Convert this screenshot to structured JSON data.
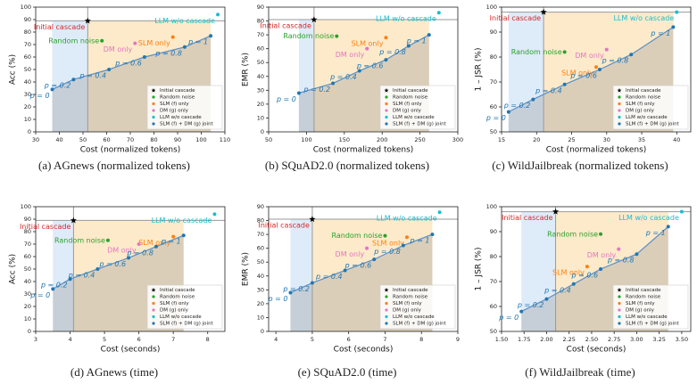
{
  "chart_data": [
    {
      "type": "scatter",
      "caption": "(a) AGnews (normalized tokens)",
      "xlabel": "Cost (normalized tokens)",
      "ylabel": "Acc (%)",
      "xlim": [
        30,
        110
      ],
      "xticks": [
        30,
        40,
        50,
        60,
        70,
        80,
        90,
        100,
        110
      ],
      "ylim": [
        0,
        100
      ],
      "yticks": [
        0,
        10,
        20,
        30,
        40,
        50,
        60,
        70,
        80,
        90,
        100
      ],
      "series": [
        {
          "name": "Initial cascade",
          "label": "Initial cascade",
          "color": "#000000",
          "label_color": "#d62728",
          "marker": "star",
          "x": [
            52
          ],
          "values": [
            89
          ]
        },
        {
          "name": "Random noise",
          "label": "Random noise",
          "color": "#2ca02c",
          "x": [
            58
          ],
          "values": [
            73
          ]
        },
        {
          "name": "SLM (f) only",
          "label": "SLM only",
          "color": "#ff7f0e",
          "x": [
            88
          ],
          "values": [
            76
          ]
        },
        {
          "name": "DM (g) only",
          "label": "DM only",
          "color": "#e377c2",
          "x": [
            72
          ],
          "values": [
            71
          ]
        },
        {
          "name": "LLM w/o cascade",
          "label": "LLM w/o cascade",
          "color": "#17becf",
          "x": [
            107
          ],
          "values": [
            94
          ]
        },
        {
          "name": "SLM (f) + DM (g) joint",
          "color": "#1f77b4",
          "line": true,
          "x": [
            37,
            46,
            61,
            76,
            93,
            104
          ],
          "values": [
            34,
            42,
            50,
            60,
            68,
            77
          ],
          "point_labels": [
            "p = 0",
            "p = 0.2",
            "p = 0.4",
            "p = 0.6",
            "p = 0.8",
            "p = 1"
          ]
        }
      ]
    },
    {
      "type": "scatter",
      "caption": "(b) SQuAD2.0 (normalized tokens)",
      "xlabel": "Cost (normalized tokens)",
      "ylabel": "EMR (%)",
      "xlim": [
        50,
        300
      ],
      "xticks": [
        50,
        100,
        150,
        200,
        250,
        300
      ],
      "ylim": [
        0,
        90
      ],
      "yticks": [
        0,
        10,
        20,
        30,
        40,
        50,
        60,
        70,
        80,
        90
      ],
      "series": [
        {
          "name": "Initial cascade",
          "label": "Initial cascade",
          "color": "#000000",
          "label_color": "#d62728",
          "marker": "star",
          "x": [
            110
          ],
          "values": [
            81
          ]
        },
        {
          "name": "Random noise",
          "label": "Random noise",
          "color": "#2ca02c",
          "x": [
            140
          ],
          "values": [
            69
          ]
        },
        {
          "name": "SLM (f) only",
          "label": "SLM only",
          "color": "#ff7f0e",
          "x": [
            205
          ],
          "values": [
            68
          ]
        },
        {
          "name": "DM (g) only",
          "label": "DM only",
          "color": "#e377c2",
          "x": [
            180
          ],
          "values": [
            60
          ]
        },
        {
          "name": "LLM w/o cascade",
          "label": "LLM w/o cascade",
          "color": "#17becf",
          "x": [
            275
          ],
          "values": [
            86
          ]
        },
        {
          "name": "SLM (f) + DM (g) joint",
          "color": "#1f77b4",
          "line": true,
          "x": [
            90,
            135,
            170,
            205,
            235,
            262
          ],
          "values": [
            28,
            35,
            44,
            52,
            62,
            70
          ],
          "point_labels": [
            "p = 0",
            "p = 0.2",
            "p = 0.4",
            "p = 0.6",
            "p = 0.8",
            "p = 1"
          ]
        }
      ]
    },
    {
      "type": "scatter",
      "caption": "(c) WildJailbreak (normalized tokens)",
      "xlabel": "Cost (normalized tokens)",
      "ylabel": "1 – JSR (%)",
      "xlim": [
        15,
        42
      ],
      "xticks": [
        15,
        20,
        25,
        30,
        35,
        40
      ],
      "ylim": [
        50,
        100
      ],
      "yticks": [
        50,
        60,
        70,
        80,
        90,
        100
      ],
      "series": [
        {
          "name": "Initial cascade",
          "label": "Initial cascade",
          "color": "#000000",
          "label_color": "#d62728",
          "marker": "star",
          "x": [
            21
          ],
          "values": [
            98
          ]
        },
        {
          "name": "Random noise",
          "label": "Random noise",
          "color": "#2ca02c",
          "x": [
            24
          ],
          "values": [
            82
          ]
        },
        {
          "name": "SLM (f) only",
          "label": "SLM only",
          "color": "#ff7f0e",
          "x": [
            28.5
          ],
          "values": [
            76
          ]
        },
        {
          "name": "DM (g) only",
          "label": "DM only",
          "color": "#e377c2",
          "x": [
            30
          ],
          "values": [
            83
          ]
        },
        {
          "name": "LLM w/o cascade",
          "label": "LLM w/o cascade",
          "color": "#17becf",
          "x": [
            40
          ],
          "values": [
            98
          ]
        },
        {
          "name": "SLM (f) + DM (g) joint",
          "color": "#1f77b4",
          "line": true,
          "x": [
            16,
            19.5,
            24,
            29,
            33.5,
            39.5
          ],
          "values": [
            58,
            63,
            69,
            75,
            81,
            92
          ],
          "point_labels": [
            "p = 0",
            "p = 0.2",
            "p = 0.4",
            "p = 0.6",
            "p = 0.8",
            "p = 1"
          ]
        }
      ]
    },
    {
      "type": "scatter",
      "caption": "(d) AGnews (time)",
      "xlabel": "Cost (seconds)",
      "ylabel": "Acc (%)",
      "xlim": [
        3,
        8.5
      ],
      "xticks": [
        3,
        4,
        5,
        6,
        7,
        8
      ],
      "ylim": [
        0,
        100
      ],
      "yticks": [
        0,
        10,
        20,
        30,
        40,
        50,
        60,
        70,
        80,
        90,
        100
      ],
      "series": [
        {
          "name": "Initial cascade",
          "label": "Initial cascade",
          "color": "#000000",
          "label_color": "#d62728",
          "marker": "star",
          "x": [
            4.1
          ],
          "values": [
            89
          ]
        },
        {
          "name": "Random noise",
          "label": "Random noise",
          "color": "#2ca02c",
          "x": [
            5.1
          ],
          "values": [
            73
          ]
        },
        {
          "name": "SLM (f) only",
          "label": "SLM only",
          "color": "#ff7f0e",
          "x": [
            7.0
          ],
          "values": [
            76
          ]
        },
        {
          "name": "DM (g) only",
          "label": "DM only",
          "color": "#e377c2",
          "x": [
            6.0
          ],
          "values": [
            70
          ]
        },
        {
          "name": "LLM w/o cascade",
          "label": "LLM w/o cascade",
          "color": "#17becf",
          "x": [
            8.2
          ],
          "values": [
            94
          ]
        },
        {
          "name": "SLM (f) + DM (g) joint",
          "color": "#1f77b4",
          "line": true,
          "x": [
            3.5,
            4.0,
            4.8,
            5.7,
            6.5,
            7.3
          ],
          "values": [
            34,
            42,
            50,
            59,
            68,
            77
          ],
          "point_labels": [
            "p = 0",
            "p = 0.2",
            "p = 0.4",
            "p = 0.6",
            "p = 0.8",
            "p = 1"
          ]
        }
      ]
    },
    {
      "type": "scatter",
      "caption": "(e) SQuAD2.0 (time)",
      "xlabel": "Cost (seconds)",
      "ylabel": "EMR (%)",
      "xlim": [
        3.8,
        9
      ],
      "xticks": [
        4,
        5,
        6,
        7,
        8,
        9
      ],
      "ylim": [
        0,
        90
      ],
      "yticks": [
        0,
        10,
        20,
        30,
        40,
        50,
        60,
        70,
        80,
        90
      ],
      "series": [
        {
          "name": "Initial cascade",
          "label": "Initial cascade",
          "color": "#000000",
          "label_color": "#d62728",
          "marker": "star",
          "x": [
            5.0
          ],
          "values": [
            81
          ]
        },
        {
          "name": "Random noise",
          "label": "Random noise",
          "color": "#2ca02c",
          "x": [
            7.0
          ],
          "values": [
            69
          ]
        },
        {
          "name": "SLM (f) only",
          "label": "SLM only",
          "color": "#ff7f0e",
          "x": [
            7.6
          ],
          "values": [
            68
          ]
        },
        {
          "name": "DM (g) only",
          "label": "DM only",
          "color": "#e377c2",
          "x": [
            6.5
          ],
          "values": [
            60
          ]
        },
        {
          "name": "LLM w/o cascade",
          "label": "LLM w/o cascade",
          "color": "#17becf",
          "x": [
            8.5
          ],
          "values": [
            86
          ]
        },
        {
          "name": "SLM (f) + DM (g) joint",
          "color": "#1f77b4",
          "line": true,
          "x": [
            4.4,
            5.0,
            5.9,
            6.7,
            7.5,
            8.3
          ],
          "values": [
            28,
            35,
            44,
            52,
            62,
            70
          ],
          "point_labels": [
            "p = 0",
            "p = 0.2",
            "p = 0.4",
            "p = 0.6",
            "p = 0.8",
            "p = 1"
          ]
        }
      ]
    },
    {
      "type": "scatter",
      "caption": "(f) WildJailbreak (time)",
      "xlabel": "Cost (seconds)",
      "ylabel": "1 – JSR (%)",
      "xlim": [
        1.5,
        3.6
      ],
      "xticks": [
        {
          "value": 1.5,
          "label": "1.50"
        },
        1.75,
        {
          "value": 2,
          "label": "2.00"
        },
        2.25,
        {
          "value": 2.5,
          "label": "2.50"
        },
        2.75,
        {
          "value": 3,
          "label": "3.00"
        },
        3.25,
        {
          "value": 3.5,
          "label": "3.50"
        }
      ],
      "ylim": [
        50,
        100
      ],
      "yticks": [
        50,
        60,
        70,
        80,
        90,
        100
      ],
      "series": [
        {
          "name": "Initial cascade",
          "label": "Initial cascade",
          "color": "#000000",
          "label_color": "#d62728",
          "marker": "star",
          "x": [
            2.1
          ],
          "values": [
            98
          ]
        },
        {
          "name": "Random noise",
          "label": "Random noise",
          "color": "#2ca02c",
          "x": [
            2.6
          ],
          "values": [
            89
          ]
        },
        {
          "name": "SLM (f) only",
          "label": "SLM only",
          "color": "#ff7f0e",
          "x": [
            2.45
          ],
          "values": [
            76
          ]
        },
        {
          "name": "DM (g) only",
          "label": "DM only",
          "color": "#e377c2",
          "x": [
            2.8
          ],
          "values": [
            83
          ]
        },
        {
          "name": "LLM w/o cascade",
          "label": "LLM w/o cascade",
          "color": "#17becf",
          "x": [
            3.5
          ],
          "values": [
            98
          ]
        },
        {
          "name": "SLM (f) + DM (g) joint",
          "color": "#1f77b4",
          "line": true,
          "x": [
            1.72,
            2.0,
            2.3,
            2.6,
            3.0,
            3.35
          ],
          "values": [
            58,
            63,
            69,
            75,
            81,
            92
          ],
          "point_labels": [
            "p = 0",
            "p = 0.2",
            "p = 0.4",
            "p = 0.6",
            "p = 0.8",
            "p = 1"
          ]
        }
      ]
    }
  ]
}
